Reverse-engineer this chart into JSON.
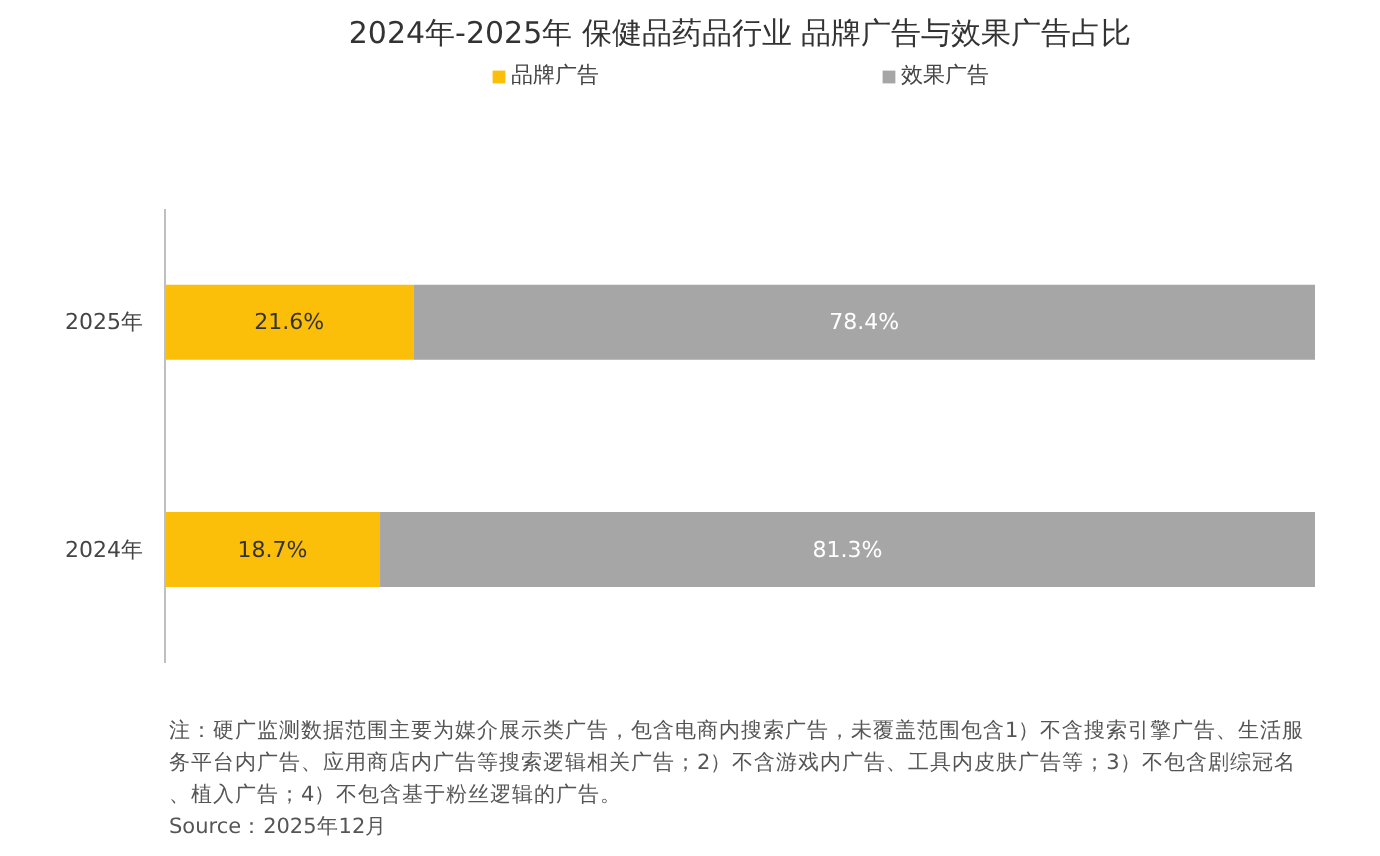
{
  "chart_data": {
    "type": "bar",
    "orientation": "horizontal",
    "stacked": true,
    "title": "2024年-2025年 保健品药品行业 品牌广告与效果广告占比",
    "categories": [
      "2025年",
      "2024年"
    ],
    "series": [
      {
        "name": "品牌广告",
        "color": "#fbbf0a",
        "values": [
          21.6,
          18.7
        ],
        "value_labels": [
          "21.6%",
          "18.7%"
        ]
      },
      {
        "name": "效果广告",
        "color": "#a6a6a6",
        "values": [
          78.4,
          81.3
        ],
        "value_labels": [
          "78.4%",
          "81.3%"
        ]
      }
    ],
    "legend": "top",
    "grid": false,
    "annotations": [
      "注：硬广监测数据范围主要为媒介展示类广告，包含电商内搜索广告，未覆盖范围包含1）不含搜索引擎广告、生活服务平台内广告、应用商店内广告等搜索逻辑相关广告；2）不含游戏内广告、工具内皮肤广告等；3）不包含剧综冠名、植入广告；4）不包含基于粉丝逻辑的广告。",
      "Source：2025年12月"
    ]
  }
}
